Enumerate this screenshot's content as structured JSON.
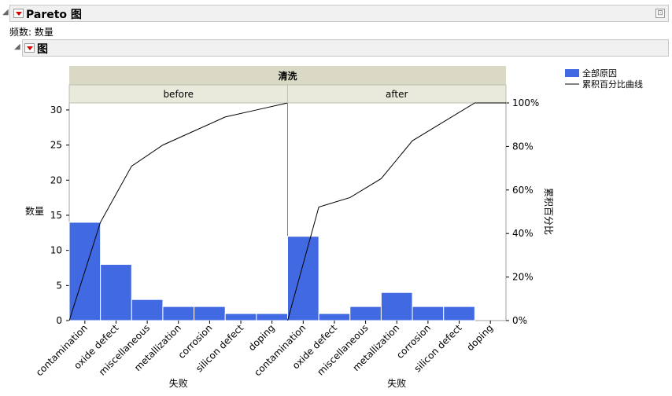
{
  "report": {
    "title": "Pareto 图",
    "frequency_label": "频数: 数量",
    "subsection_title": "图"
  },
  "colors": {
    "bar": "#4169e1",
    "header": "#d9d9c6",
    "subheader": "#e9e9dc",
    "line": "#000000"
  },
  "chart_data": {
    "type": "bar",
    "group_title": "清洗",
    "xlabel": "失败",
    "ylabel": "数量",
    "y2label": "累积百分比",
    "ylim": [
      0,
      31
    ],
    "y_ticks": [
      0,
      5,
      10,
      15,
      20,
      25,
      30
    ],
    "y2_ticks": [
      "0%",
      "20%",
      "40%",
      "60%",
      "80%",
      "100%"
    ],
    "legend": {
      "bar_label": "全部原因",
      "line_label": "累积百分比曲线",
      "position": "top-right"
    },
    "categories": [
      "contamination",
      "oxide defect",
      "miscellaneous",
      "metallization",
      "corrosion",
      "silicon defect",
      "doping"
    ],
    "panels": [
      {
        "name": "before",
        "values": [
          14,
          8,
          3,
          2,
          2,
          1,
          1
        ]
      },
      {
        "name": "after",
        "values": [
          12,
          1,
          2,
          4,
          2,
          2,
          0
        ]
      }
    ]
  }
}
